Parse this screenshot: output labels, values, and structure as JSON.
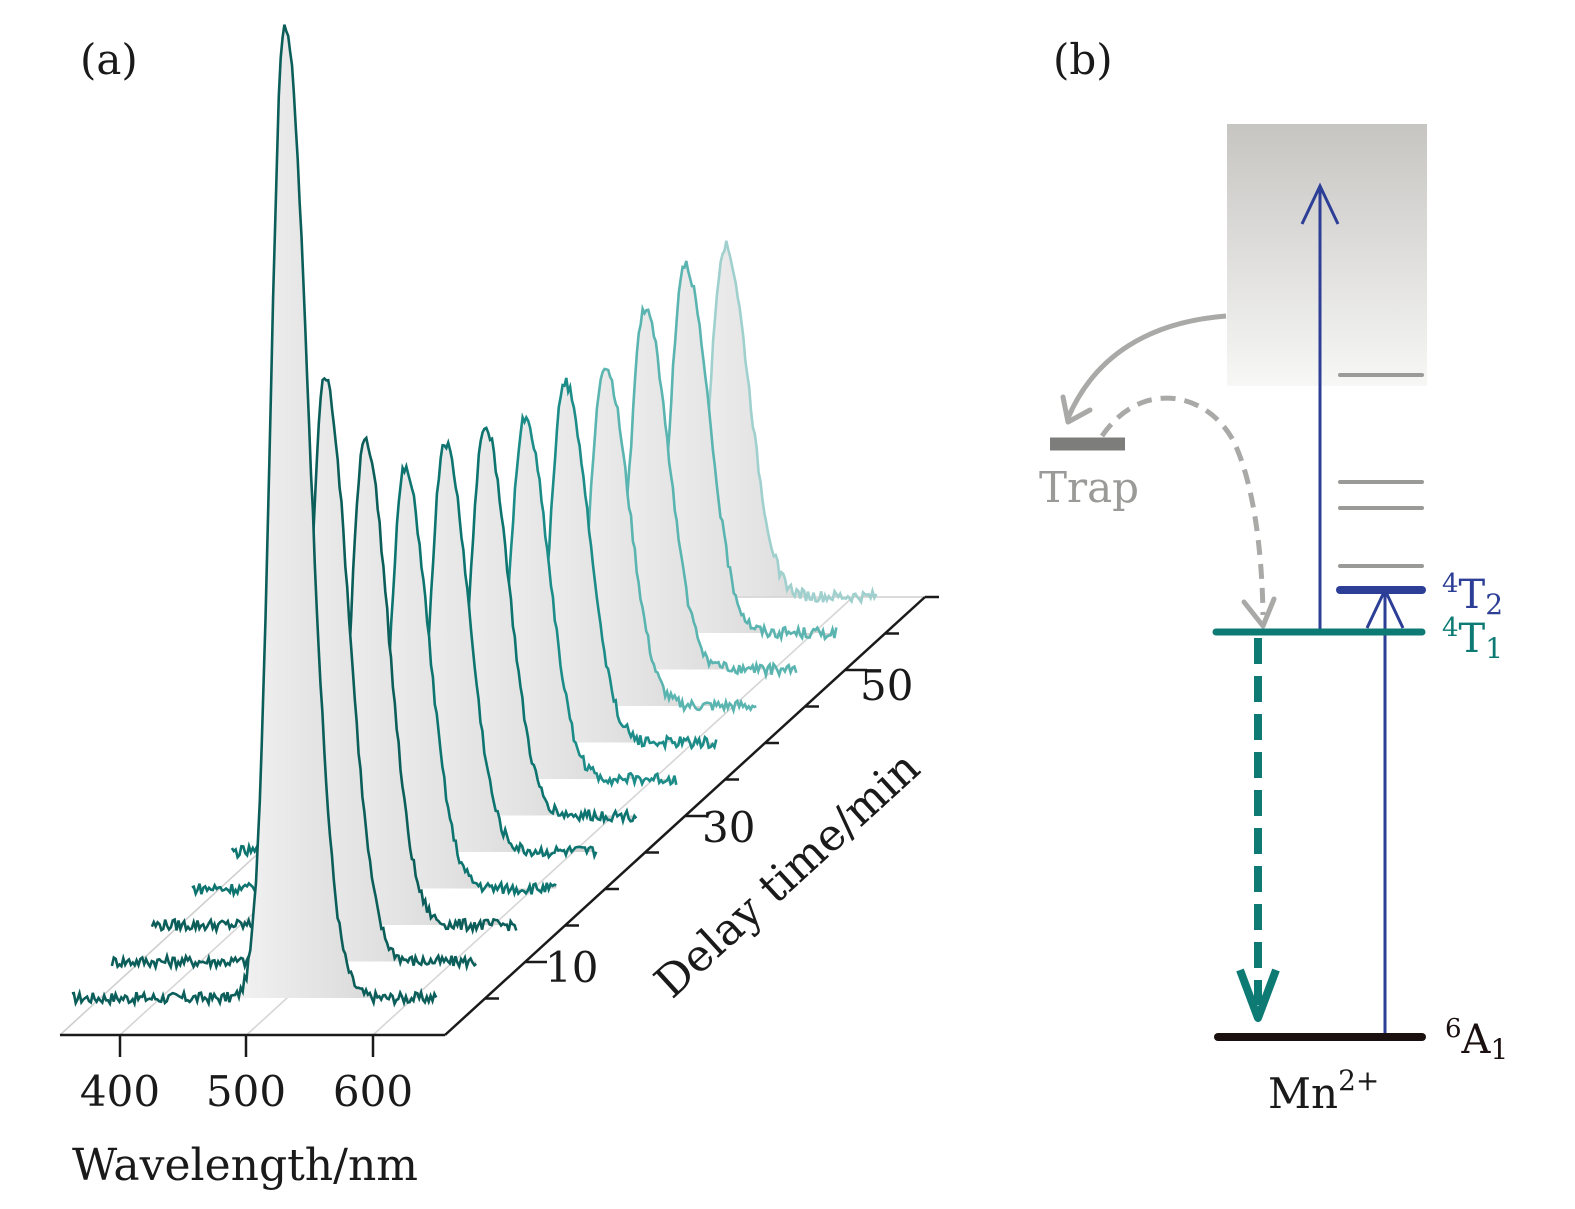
{
  "panel_a": {
    "label": "(a)",
    "xlabel": "Wavelength/nm",
    "ylabel": "Delay time/min",
    "x_ticks": [
      400,
      500,
      600
    ],
    "y_tick_labels": [
      10,
      30,
      50
    ],
    "curve_colors": [
      "#0b5e5a",
      "#0d7470",
      "#1b8c88",
      "#5ab4b0",
      "#9fd0cd"
    ]
  },
  "panel_b": {
    "label": "(b)",
    "trap_label": "Trap",
    "ion_label": "Mn",
    "ion_charge": "2+",
    "levels": {
      "t2": {
        "sup": "4",
        "main": "T",
        "sub": "2",
        "color": "#2c3e96"
      },
      "t1": {
        "sup": "4",
        "main": "T",
        "sub": "1",
        "color": "#0d7a74"
      },
      "a1": {
        "sup": "6",
        "main": "A",
        "sub": "1",
        "color": "#1a1010"
      }
    },
    "colors": {
      "excitation": "#2c3e96",
      "emission": "#0d7a74",
      "trap": "#9a9a98"
    }
  },
  "chart_data": [
    {
      "type": "line",
      "panel": "(a)",
      "xlabel": "Wavelength/nm",
      "ylabel": "Delay time/min",
      "x_ticks": [
        400,
        500,
        600
      ],
      "delay_ticks": [
        10,
        30,
        50
      ],
      "series": [
        {
          "delay": 0,
          "peak_wavelength": 530,
          "peak_height": 1.0
        },
        {
          "delay": 5,
          "peak_wavelength": 530,
          "peak_height": 0.6
        },
        {
          "delay": 10,
          "peak_wavelength": 530,
          "peak_height": 0.5
        },
        {
          "delay": 15,
          "peak_wavelength": 530,
          "peak_height": 0.43
        },
        {
          "delay": 20,
          "peak_wavelength": 530,
          "peak_height": 0.42
        },
        {
          "delay": 25,
          "peak_wavelength": 530,
          "peak_height": 0.4
        },
        {
          "delay": 30,
          "peak_wavelength": 530,
          "peak_height": 0.37
        },
        {
          "delay": 35,
          "peak_wavelength": 530,
          "peak_height": 0.37
        },
        {
          "delay": 40,
          "peak_wavelength": 530,
          "peak_height": 0.35
        },
        {
          "delay": 45,
          "peak_wavelength": 530,
          "peak_height": 0.37
        },
        {
          "delay": 50,
          "peak_wavelength": 530,
          "peak_height": 0.38
        },
        {
          "delay": 55,
          "peak_wavelength": 530,
          "peak_height": 0.36
        }
      ]
    },
    {
      "type": "diagram",
      "panel": "(b)",
      "levels": [
        "4T2",
        "4T1",
        "6A1"
      ],
      "transitions": [
        {
          "from": "6A1",
          "to": "4T2",
          "kind": "excitation"
        },
        {
          "from": "4T1",
          "to": "conduction band",
          "kind": "excitation"
        },
        {
          "from": "conduction band",
          "to": "Trap",
          "kind": "trapping"
        },
        {
          "from": "Trap",
          "to": "4T1",
          "kind": "release"
        },
        {
          "from": "4T1",
          "to": "6A1",
          "kind": "emission"
        }
      ]
    }
  ]
}
